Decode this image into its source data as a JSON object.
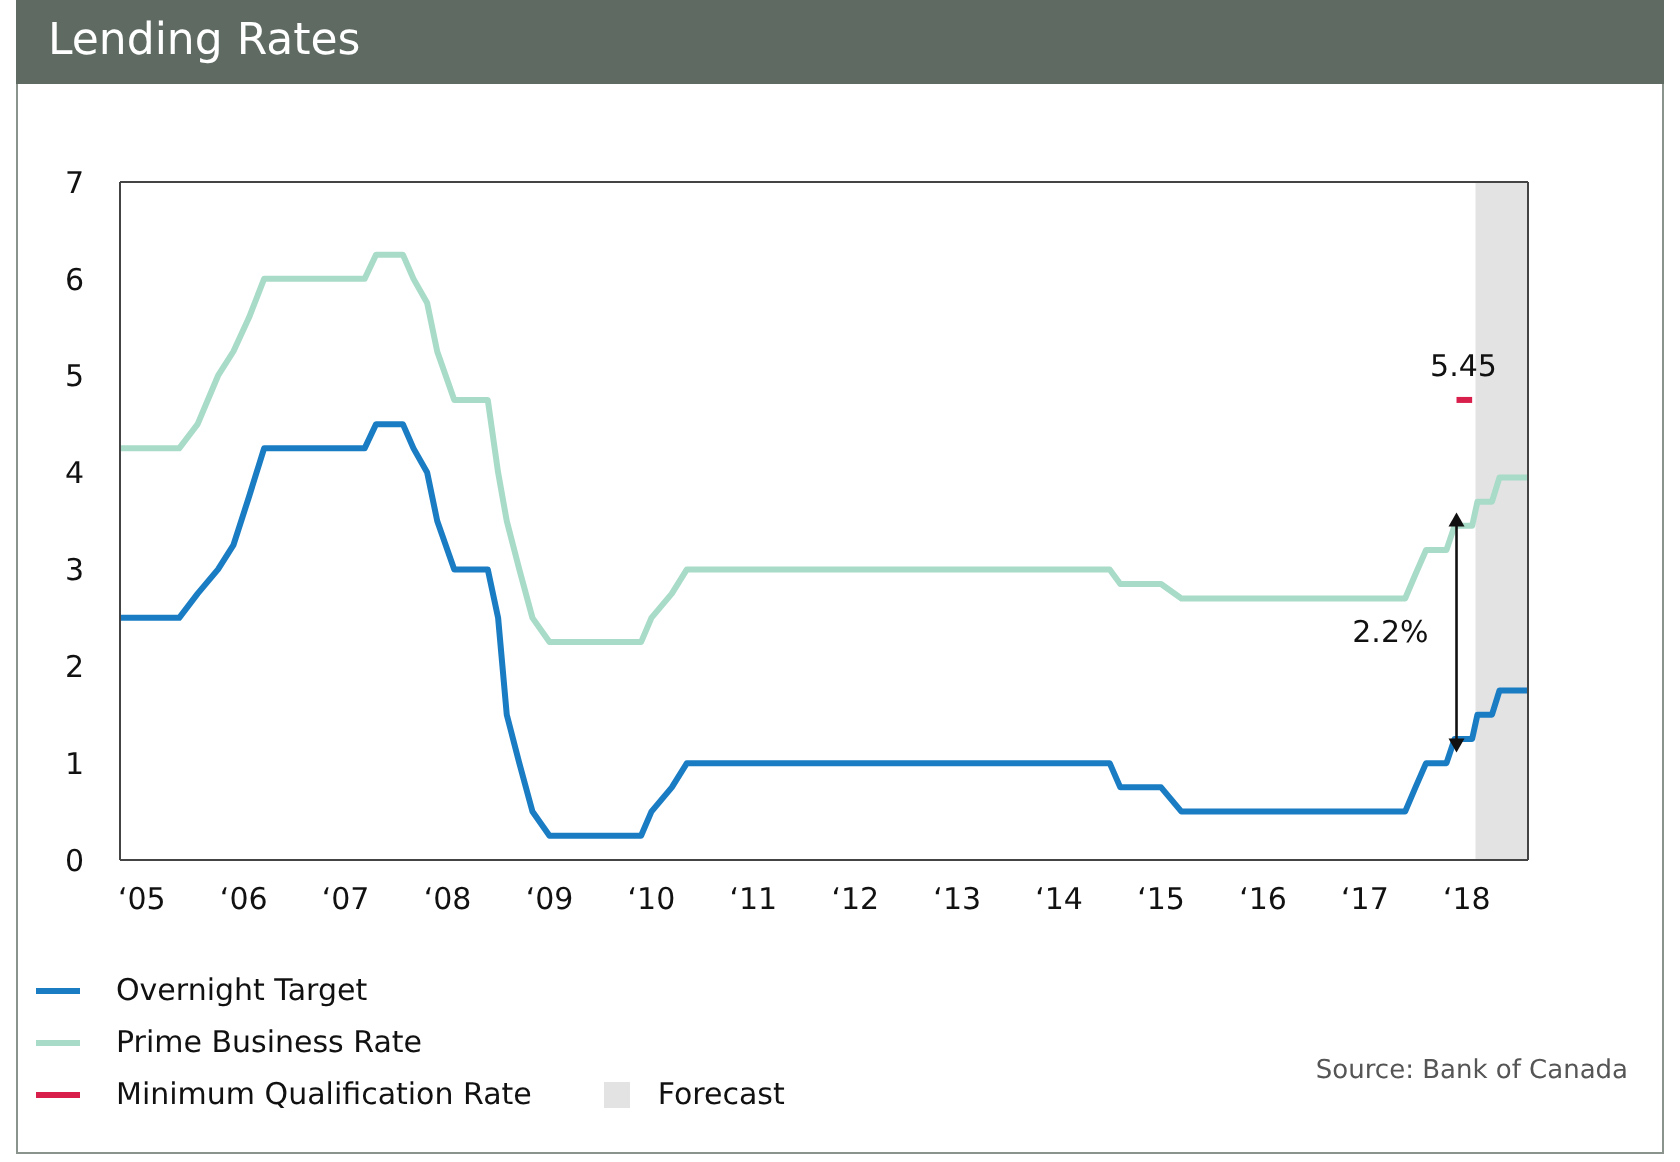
{
  "chart_data": {
    "type": "line",
    "title": "Lending Rates",
    "series": [
      {
        "name": "Overnight Target",
        "color": "#1a7dc4",
        "x": [
          "2004-10-15",
          "2005-05-15",
          "2005-07-20",
          "2005-10-01",
          "2005-11-25",
          "2006-01-20",
          "2006-03-15",
          "2007-03-10",
          "2007-04-20",
          "2007-07-25",
          "2007-09-01",
          "2007-10-20",
          "2007-11-25",
          "2008-01-25",
          "2008-05-25",
          "2008-07-01",
          "2008-08-01",
          "2008-09-15",
          "2008-11-01",
          "2009-01-01",
          "2009-11-25",
          "2010-01-01",
          "2010-03-15",
          "2010-05-08",
          "2014-07-01",
          "2014-08-08",
          "2015-01-01",
          "2015-03-15",
          "2017-05-25",
          "2017-07-01",
          "2017-08-08",
          "2017-10-20",
          "2017-11-18",
          "2018-01-20",
          "2018-02-08",
          "2018-04-01",
          "2018-04-28",
          "2018-08-08"
        ],
        "values": [
          2.5,
          2.5,
          2.75,
          3.0,
          3.25,
          3.75,
          4.25,
          4.25,
          4.5,
          4.5,
          4.25,
          4.0,
          3.5,
          3.0,
          3.0,
          2.5,
          1.5,
          1.0,
          0.5,
          0.25,
          0.25,
          0.5,
          0.75,
          1.0,
          1.0,
          0.75,
          0.75,
          0.5,
          0.5,
          0.75,
          1.0,
          1.0,
          1.25,
          1.25,
          1.5,
          1.5,
          1.75,
          1.75
        ]
      },
      {
        "name": "Prime Business Rate",
        "color": "#a8dcc8",
        "x": [
          "2004-10-15",
          "2005-05-15",
          "2005-07-20",
          "2005-10-01",
          "2005-11-25",
          "2006-01-20",
          "2006-03-15",
          "2007-03-10",
          "2007-04-20",
          "2007-07-25",
          "2007-09-01",
          "2007-10-20",
          "2007-11-25",
          "2008-01-25",
          "2008-05-25",
          "2008-07-01",
          "2008-08-01",
          "2008-09-15",
          "2008-11-01",
          "2009-01-01",
          "2009-11-25",
          "2010-01-01",
          "2010-03-15",
          "2010-05-08",
          "2014-07-01",
          "2014-08-08",
          "2015-01-01",
          "2015-03-15",
          "2017-05-25",
          "2017-07-01",
          "2017-08-08",
          "2017-10-20",
          "2017-11-18",
          "2018-01-20",
          "2018-02-08",
          "2018-04-01",
          "2018-04-28",
          "2018-08-08"
        ],
        "values": [
          4.25,
          4.25,
          4.5,
          5.0,
          5.25,
          5.6,
          6.0,
          6.0,
          6.25,
          6.25,
          6.0,
          5.75,
          5.25,
          4.75,
          4.75,
          4.0,
          3.5,
          3.0,
          2.5,
          2.25,
          2.25,
          2.5,
          2.75,
          3.0,
          3.0,
          2.85,
          2.85,
          2.7,
          2.7,
          2.95,
          3.2,
          3.2,
          3.45,
          3.45,
          3.7,
          3.7,
          3.95,
          3.95
        ]
      },
      {
        "name": "Minimum Qualification Rate",
        "color": "#d81e4a",
        "x": [
          "2017-11-25",
          "2018-01-20"
        ],
        "values": [
          4.75,
          4.75
        ]
      }
    ],
    "xlim": [
      "2004-10-15",
      "2018-08-08"
    ],
    "xticks": [
      {
        "value": "2005",
        "label": "‘05"
      },
      {
        "value": "2006",
        "label": "‘06"
      },
      {
        "value": "2007",
        "label": "‘07"
      },
      {
        "value": "2008",
        "label": "‘08"
      },
      {
        "value": "2009",
        "label": "‘09"
      },
      {
        "value": "2010",
        "label": "‘10"
      },
      {
        "value": "2011",
        "label": "‘11"
      },
      {
        "value": "2012",
        "label": "‘12"
      },
      {
        "value": "2013",
        "label": "‘13"
      },
      {
        "value": "2014",
        "label": "‘14"
      },
      {
        "value": "2015",
        "label": "‘15"
      },
      {
        "value": "2016",
        "label": "‘16"
      },
      {
        "value": "2017",
        "label": "‘17"
      },
      {
        "value": "2018",
        "label": "‘18"
      }
    ],
    "ylim": [
      0,
      7
    ],
    "yticks": [
      0,
      1,
      2,
      3,
      4,
      5,
      6,
      7
    ],
    "bands": [
      {
        "axis": "x",
        "from": "2018-02-01",
        "to": "2018-08-08",
        "label": "Forecast",
        "color": "#e3e3e3"
      }
    ],
    "annotations": [
      {
        "text": "5.45",
        "x": "2017-12-20",
        "y": 4.75
      },
      "2.2%",
      "Source: Bank of Canada"
    ],
    "legend": "bottom left",
    "marker": "none",
    "line_style": "solid",
    "grid": false
  }
}
